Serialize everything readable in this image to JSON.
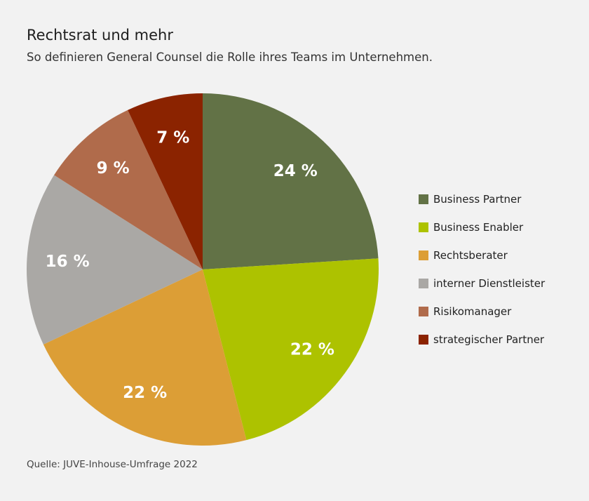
{
  "title": "Rechtsrat und mehr",
  "subtitle": "So definieren General Counsel die Rolle ihres Teams im Unternehmen.",
  "source": "Quelle: JUVE-Inhouse-Umfrage 2022",
  "chart_data": {
    "type": "pie",
    "title": "Rechtsrat und mehr",
    "start": "12 o'clock, clockwise",
    "legend_position": "right",
    "categories": [
      "Business Partner",
      "Business Enabler",
      "Rechtsberater",
      "interner Dienstleister",
      "Risikomanager",
      "strategischer Partner"
    ],
    "values": [
      24,
      22,
      22,
      16,
      9,
      7
    ],
    "labels": [
      "24 %",
      "22 %",
      "22 %",
      "16 %",
      "9 %",
      "7 %"
    ],
    "colors": [
      "#627246",
      "#adc200",
      "#dc9e36",
      "#aaa8a5",
      "#b06b4b",
      "#8b2300"
    ]
  }
}
